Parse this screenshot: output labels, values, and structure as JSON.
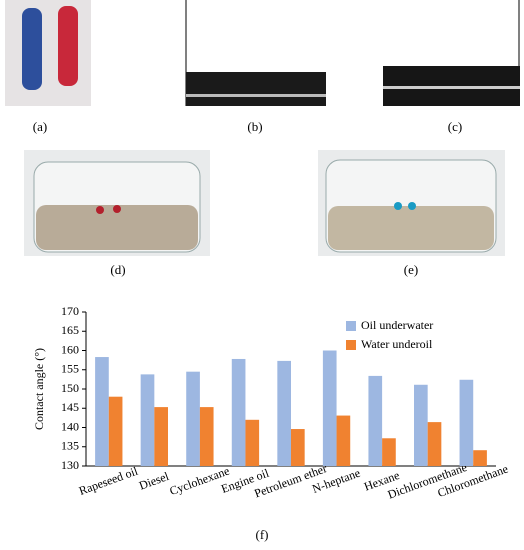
{
  "panels": {
    "a": "(a)",
    "b": "(b)",
    "c": "(c)",
    "d": "(d)",
    "e": "(e)",
    "f": "(f)"
  },
  "chart_data": {
    "type": "bar",
    "y_label": "Contact angle (°)",
    "categories": [
      "Rapeseed oil",
      "Diesel",
      "Cyclohexane",
      "Engine oil",
      "Petroleum ether",
      "N-heptane",
      "Hexane",
      "Dichloromethane",
      "Chloromethane"
    ],
    "series": [
      {
        "name": "Oil underwater",
        "color": "#9db7e1",
        "values": [
          158.3,
          153.8,
          154.5,
          157.8,
          157.3,
          160,
          153.4,
          151.1,
          152.4
        ]
      },
      {
        "name": "Water underoil",
        "color": "#f08230",
        "values": [
          148,
          145.3,
          145.3,
          142,
          139.6,
          143.1,
          137.2,
          141.4,
          134.1
        ]
      }
    ],
    "ylim": [
      130,
      170
    ],
    "yticks": [
      130,
      135,
      140,
      145,
      150,
      155,
      160,
      165,
      170
    ],
    "legend": "top-right",
    "grid": false
  }
}
